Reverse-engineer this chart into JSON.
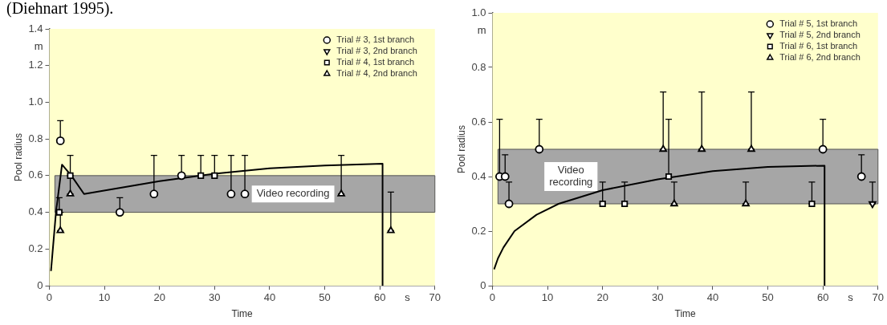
{
  "chart_data": [
    {
      "type": "scatter",
      "xlabel": "Time",
      "ylabel": "Pool radius",
      "xlim": [
        0,
        70
      ],
      "ylim": [
        0,
        1.4
      ],
      "xticks": [
        0,
        10,
        20,
        30,
        40,
        50,
        60,
        70
      ],
      "yticks": [
        0,
        0.2,
        0.4,
        0.6,
        0.8,
        {
          "value": 1,
          "label": "1.0"
        },
        1.2,
        1.4
      ],
      "legend": "top right",
      "annotations": [
        "m",
        "s",
        "(Diehnart 1995)."
      ],
      "bands": [
        {
          "axis": "y",
          "from": 0.4,
          "to": 0.6,
          "label": "Video recording",
          "color": "#a6a6a6"
        }
      ],
      "series": [
        {
          "name": "Trial # 3, 1st branch",
          "type": "scatter",
          "marker": "circle",
          "color": "#000000",
          "x": [
            2,
            12.8,
            19,
            24,
            33,
            35.5
          ],
          "values": [
            0.79,
            0.4,
            0.5,
            0.6,
            0.5,
            0.5
          ],
          "errors": [
            [
              0.79,
              0.9
            ],
            [
              0.4,
              0.48
            ],
            [
              0.5,
              0.71
            ],
            [
              0.6,
              0.71
            ],
            [
              0.5,
              0.71
            ],
            [
              0.5,
              0.71
            ]
          ]
        },
        {
          "name": "Trial # 3, 2nd branch",
          "type": "scatter",
          "marker": "triangle-down",
          "color": "#000000"
        },
        {
          "name": "Trial # 4, 1st branch",
          "type": "scatter",
          "marker": "square",
          "color": "#000000",
          "x": [
            1.8,
            3.8,
            27.5,
            30
          ],
          "values": [
            0.4,
            0.6,
            0.6,
            0.6
          ],
          "errors": [
            [
              0.4,
              0.48
            ],
            [
              0.6,
              0.71
            ],
            [
              0.6,
              0.71
            ],
            [
              0.6,
              0.71
            ]
          ]
        },
        {
          "name": "Trial # 4, 2nd branch",
          "type": "scatter",
          "marker": "triangle",
          "color": "#000000",
          "x": [
            2,
            3.8,
            53,
            62
          ],
          "values": [
            0.3,
            0.5,
            0.5,
            0.3
          ],
          "errors": [
            [
              0.3,
              0.4
            ],
            [
              0.5,
              0.6
            ],
            [
              0.5,
              0.71
            ],
            [
              0.3,
              0.51
            ]
          ]
        },
        {
          "type": "line",
          "marker": "none",
          "color": "#000000",
          "x": [
            0.3,
            1.2,
            2.3,
            4,
            6.3,
            20,
            30,
            40,
            50,
            60.5,
            60.5
          ],
          "values": [
            0.08,
            0.4,
            0.66,
            0.6,
            0.5,
            0.57,
            0.61,
            0.64,
            0.655,
            0.665,
            0
          ]
        }
      ]
    },
    {
      "type": "scatter",
      "xlabel": "Time",
      "ylabel": "Pool radius",
      "xlim": [
        0,
        70
      ],
      "ylim": [
        0,
        1
      ],
      "xticks": [
        0,
        10,
        20,
        30,
        40,
        50,
        60,
        70
      ],
      "yticks": [
        0,
        0.2,
        0.4,
        0.6,
        0.8,
        {
          "value": 1,
          "label": "1.0"
        }
      ],
      "legend": "top right",
      "annotations": [
        "m",
        "s"
      ],
      "bands": [
        {
          "axis": "y",
          "from": 0.3,
          "to": 0.5,
          "label": "Video recording",
          "color": "#a6a6a6"
        }
      ],
      "series": [
        {
          "name": "Trial # 5, 1st branch",
          "type": "scatter",
          "marker": "circle",
          "color": "#000000",
          "x": [
            1.3,
            2.3,
            3,
            8.5,
            60,
            67
          ],
          "values": [
            0.4,
            0.4,
            0.3,
            0.5,
            0.5,
            0.4
          ],
          "errors": [
            [
              0.4,
              0.61
            ],
            [
              0.4,
              0.48
            ],
            [
              0.3,
              0.38
            ],
            [
              0.5,
              0.61
            ],
            [
              0.5,
              0.61
            ],
            [
              0.4,
              0.48
            ]
          ]
        },
        {
          "name": "Trial # 5, 2nd branch",
          "type": "scatter",
          "marker": "triangle-down",
          "color": "#000000",
          "x": [
            69
          ],
          "values": [
            0.3
          ],
          "errors": [
            [
              0.3,
              0.38
            ]
          ]
        },
        {
          "name": "Trial # 6, 1st branch",
          "type": "scatter",
          "marker": "square",
          "color": "#000000",
          "x": [
            20,
            24,
            32,
            58
          ],
          "values": [
            0.3,
            0.3,
            0.4,
            0.3
          ],
          "errors": [
            [
              0.3,
              0.38
            ],
            [
              0.3,
              0.38
            ],
            [
              0.4,
              0.61
            ],
            [
              0.3,
              0.38
            ]
          ]
        },
        {
          "name": "Trial # 6, 2nd branch",
          "type": "scatter",
          "marker": "triangle",
          "color": "#000000",
          "x": [
            31,
            33,
            38,
            46,
            47
          ],
          "values": [
            0.5,
            0.3,
            0.5,
            0.3,
            0.5
          ],
          "errors": [
            [
              0.5,
              0.71
            ],
            [
              0.3,
              0.38
            ],
            [
              0.5,
              0.71
            ],
            [
              0.3,
              0.38
            ],
            [
              0.5,
              0.71
            ]
          ]
        },
        {
          "type": "line",
          "marker": "none",
          "color": "#000000",
          "x": [
            0.3,
            1,
            2,
            4,
            8,
            12,
            20,
            30,
            40,
            50,
            60.3,
            60.3
          ],
          "values": [
            0.06,
            0.1,
            0.14,
            0.2,
            0.26,
            0.3,
            0.35,
            0.39,
            0.42,
            0.435,
            0.44,
            0
          ]
        }
      ]
    }
  ]
}
